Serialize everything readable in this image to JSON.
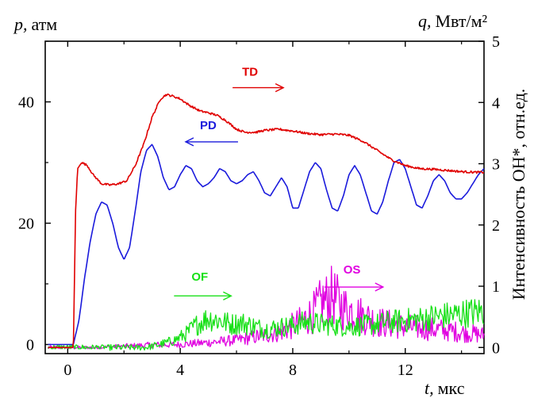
{
  "chart_data": {
    "type": "line",
    "title": "",
    "axes": {
      "x": {
        "label_var": "t,",
        "label_unit": "мкс",
        "range": [
          -0.8,
          14.8
        ],
        "ticks": [
          "0",
          "4",
          "8",
          "12"
        ],
        "tick_values": [
          0,
          4,
          8,
          12
        ]
      },
      "y_left": {
        "label_var": "p,",
        "label_unit": "атм",
        "range": [
          -1.5,
          50
        ],
        "ticks": [
          "0",
          "20",
          "40"
        ],
        "tick_values": [
          0,
          20,
          40
        ]
      },
      "y_right_q": {
        "label_var": "q,",
        "label_unit": "Мвт/м²",
        "range": [
          -0.1,
          5
        ],
        "ticks": [
          "0",
          "1",
          "2",
          "3",
          "4",
          "5"
        ],
        "tick_values": [
          0,
          1,
          2,
          3,
          4,
          5
        ]
      },
      "y_right_int": {
        "label": "Интенсивность OH*, отн.ед."
      }
    },
    "grid": false,
    "series": [
      {
        "name": "TD",
        "color": "#e00000",
        "axis": "left",
        "x": [
          -0.7,
          0.2,
          0.28,
          0.35,
          0.5,
          0.7,
          0.9,
          1.2,
          1.5,
          1.8,
          2.1,
          2.4,
          2.7,
          3.0,
          3.3,
          3.5,
          3.7,
          4.0,
          4.3,
          4.7,
          5.0,
          5.3,
          5.6,
          6.0,
          6.3,
          6.7,
          7.0,
          7.5,
          8.0,
          8.5,
          9.0,
          9.5,
          10.0,
          10.5,
          11.0,
          11.5,
          12.0,
          12.5,
          13.0,
          13.5,
          14.0,
          14.5,
          14.8
        ],
        "values": [
          -0.5,
          -0.5,
          22,
          29,
          30,
          29.5,
          28,
          26.5,
          26.3,
          26.5,
          27,
          29.5,
          33,
          37.5,
          40.5,
          41.2,
          41,
          40.5,
          39.5,
          38.5,
          38.2,
          37.8,
          37,
          35.5,
          35,
          35,
          35.3,
          35.5,
          35.2,
          34.8,
          34.6,
          34.7,
          34.5,
          33.5,
          32,
          30.5,
          29.5,
          29,
          28.9,
          28.7,
          28.5,
          28.4,
          28.4
        ]
      },
      {
        "name": "PD",
        "color": "#1a1adc",
        "axis": "left",
        "x": [
          -0.7,
          0.2,
          0.4,
          0.6,
          0.8,
          1.0,
          1.2,
          1.4,
          1.6,
          1.8,
          2.0,
          2.2,
          2.4,
          2.6,
          2.8,
          3.0,
          3.2,
          3.4,
          3.6,
          3.8,
          4.0,
          4.2,
          4.4,
          4.6,
          4.8,
          5.0,
          5.2,
          5.4,
          5.6,
          5.8,
          6.0,
          6.2,
          6.4,
          6.6,
          6.8,
          7.0,
          7.2,
          7.4,
          7.6,
          7.8,
          8.0,
          8.2,
          8.4,
          8.6,
          8.8,
          9.0,
          9.2,
          9.4,
          9.6,
          9.8,
          10.0,
          10.2,
          10.4,
          10.6,
          10.8,
          11.0,
          11.2,
          11.4,
          11.6,
          11.8,
          12.0,
          12.2,
          12.4,
          12.6,
          12.8,
          13.0,
          13.2,
          13.4,
          13.6,
          13.8,
          14.0,
          14.2,
          14.4,
          14.6,
          14.8
        ],
        "values": [
          0,
          0,
          4,
          11,
          17,
          21.5,
          23.5,
          23,
          20,
          16,
          14,
          16,
          22,
          28.5,
          32,
          33,
          31,
          27.5,
          25.5,
          26,
          28,
          29.5,
          29,
          27,
          26,
          26.5,
          27.5,
          29,
          28.5,
          27,
          26.5,
          27,
          28,
          28.5,
          27,
          25,
          24.5,
          26,
          27.5,
          26,
          22.5,
          22.5,
          25.5,
          28.5,
          30,
          29,
          25.5,
          22.5,
          22,
          24.5,
          28,
          29.5,
          28,
          25,
          22,
          21.5,
          23.5,
          27,
          30,
          30.5,
          29,
          26,
          23,
          22.5,
          24.5,
          27,
          28,
          27,
          25,
          24,
          24,
          25,
          26.5,
          28,
          29
        ]
      },
      {
        "name": "OF",
        "color": "#18e018",
        "axis": "right",
        "x": [
          -0.7,
          1.0,
          2.0,
          2.8,
          3.3,
          3.8,
          4.2,
          4.6,
          5.0,
          5.4,
          5.8,
          6.2,
          6.6,
          7.0,
          7.5,
          8.0,
          8.5,
          9.0,
          9.5,
          10.0,
          10.5,
          11.0,
          11.5,
          12.0,
          12.5,
          13.0,
          13.5,
          14.0,
          14.5,
          14.8
        ],
        "values": [
          0.0,
          0.0,
          0.0,
          0.0,
          0.05,
          0.12,
          0.22,
          0.38,
          0.48,
          0.44,
          0.38,
          0.4,
          0.35,
          0.3,
          0.33,
          0.36,
          0.42,
          0.38,
          0.36,
          0.34,
          0.36,
          0.38,
          0.42,
          0.44,
          0.46,
          0.5,
          0.52,
          0.55,
          0.58,
          0.6
        ]
      },
      {
        "name": "OS",
        "color": "#e000e0",
        "axis": "right",
        "x": [
          -0.7,
          1.0,
          2.0,
          3.0,
          4.0,
          5.0,
          5.5,
          6.0,
          6.5,
          7.0,
          7.5,
          8.0,
          8.4,
          8.8,
          9.0,
          9.2,
          9.4,
          9.6,
          9.8,
          10.0,
          10.3,
          10.6,
          11.0,
          11.5,
          12.0,
          12.5,
          13.0,
          13.5,
          14.0,
          14.5,
          14.8
        ],
        "values": [
          0.0,
          0.0,
          0.02,
          0.04,
          0.05,
          0.08,
          0.1,
          0.12,
          0.16,
          0.2,
          0.25,
          0.35,
          0.45,
          0.6,
          0.72,
          0.78,
          0.85,
          0.75,
          0.65,
          0.62,
          0.55,
          0.5,
          0.42,
          0.38,
          0.34,
          0.32,
          0.3,
          0.28,
          0.25,
          0.22,
          0.2
        ]
      }
    ],
    "annotations": [
      {
        "text": "TD",
        "color": "#e00000",
        "arrow": "right",
        "x": 6.2,
        "y": 44.3
      },
      {
        "text": "PD",
        "color": "#1a1adc",
        "arrow": "left",
        "x": 4.7,
        "y": 35.5
      },
      {
        "text": "OF",
        "color": "#18e018",
        "arrow": "right",
        "x": 4.4,
        "y": 10.5
      },
      {
        "text": "OS",
        "color": "#e000e0",
        "arrow": "right",
        "x": 9.8,
        "y": 11.7
      }
    ]
  }
}
